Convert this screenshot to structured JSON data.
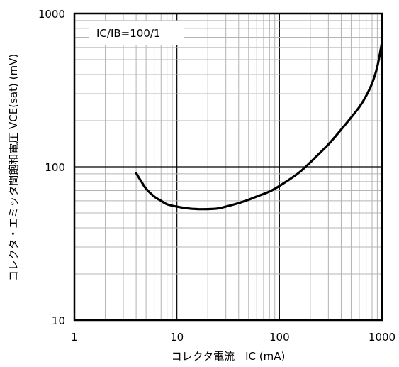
{
  "chart_data": {
    "type": "line",
    "title": "",
    "xlabel": "コレクタ電流　IC (mA)",
    "ylabel": "コレクタ・エミッタ間飽和電圧 VCE(sat) (mV)",
    "x_scale": "log",
    "y_scale": "log",
    "xlim": [
      1,
      1000
    ],
    "ylim": [
      10,
      1000
    ],
    "x_ticks": [
      "1",
      "10",
      "100",
      "1000"
    ],
    "y_ticks": [
      "10",
      "100",
      "1000"
    ],
    "grid": true,
    "annotations": [
      "IC/IB=100/1"
    ],
    "series": [
      {
        "x": [
          4,
          4.5,
          5,
          6,
          7,
          8,
          10,
          13,
          16,
          20,
          25,
          30,
          40,
          50,
          60,
          80,
          100,
          150,
          200,
          300,
          400,
          500,
          600,
          700,
          800,
          900,
          1000
        ],
        "y": [
          91,
          80,
          72,
          64,
          60,
          57,
          55,
          53.5,
          53,
          53,
          53.5,
          55,
          58,
          61,
          64,
          69,
          75,
          90,
          107,
          140,
          175,
          210,
          245,
          290,
          350,
          450,
          650
        ]
      }
    ]
  }
}
